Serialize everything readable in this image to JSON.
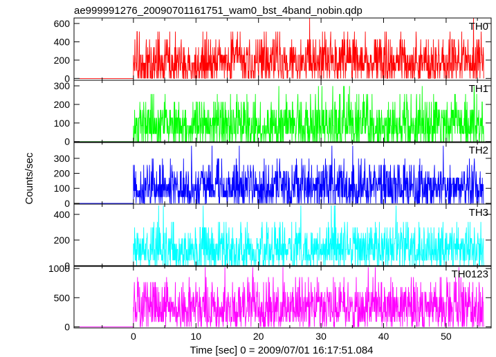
{
  "title": "ae999991276_20090701161751_wam0_bst_4band_nobin.qdp",
  "ylabel": "Counts/sec",
  "xlabel": "Time [sec] 0 = 2009/07/01 16:17:51.084",
  "chart_data": {
    "type": "line",
    "title": "ae999991276_20090701161751_wam0_bst_4band_nobin.qdp",
    "xlabel": "Time [sec] 0 = 2009/07/01 16:17:51.084",
    "ylabel": "Counts/sec",
    "xlim": [
      -9.5,
      57.2
    ],
    "xticks": [
      0,
      10,
      20,
      30,
      40,
      50
    ],
    "x_step": 0.046875,
    "burst_start": 0.0,
    "data_end": 56.0,
    "panels": [
      {
        "name": "TH0",
        "color": "#ff0000",
        "ylim": [
          -20,
          660
        ],
        "yticks": [
          0,
          200,
          400,
          600
        ],
        "pre_level": 0,
        "count_quantum": 85.33,
        "mean": 175,
        "typical_max": 400,
        "peak": 660
      },
      {
        "name": "TH1",
        "color": "#00ff00",
        "ylim": [
          -5,
          330
        ],
        "yticks": [
          0,
          100,
          200,
          300
        ],
        "pre_level": 0,
        "count_quantum": 42.67,
        "mean": 80,
        "typical_max": 215,
        "peak": 320
      },
      {
        "name": "TH2",
        "color": "#0000ff",
        "ylim": [
          -5,
          410
        ],
        "yticks": [
          0,
          100,
          200,
          300
        ],
        "pre_level": 0,
        "count_quantum": 42.67,
        "mean": 105,
        "typical_max": 260,
        "peak": 400
      },
      {
        "name": "TH3",
        "color": "#00ffff",
        "ylim": [
          -5,
          480
        ],
        "yticks": [
          0,
          200,
          400
        ],
        "pre_level": 0,
        "count_quantum": 42.67,
        "mean": 130,
        "typical_max": 300,
        "peak": 470
      },
      {
        "name": "TH0123",
        "color": "#ff00ff",
        "ylim": [
          -20,
          1050
        ],
        "yticks": [
          0,
          500,
          1000
        ],
        "pre_level": 0,
        "count_quantum": 85.33,
        "mean": 500,
        "typical_max": 800,
        "peak": 1000
      }
    ]
  }
}
